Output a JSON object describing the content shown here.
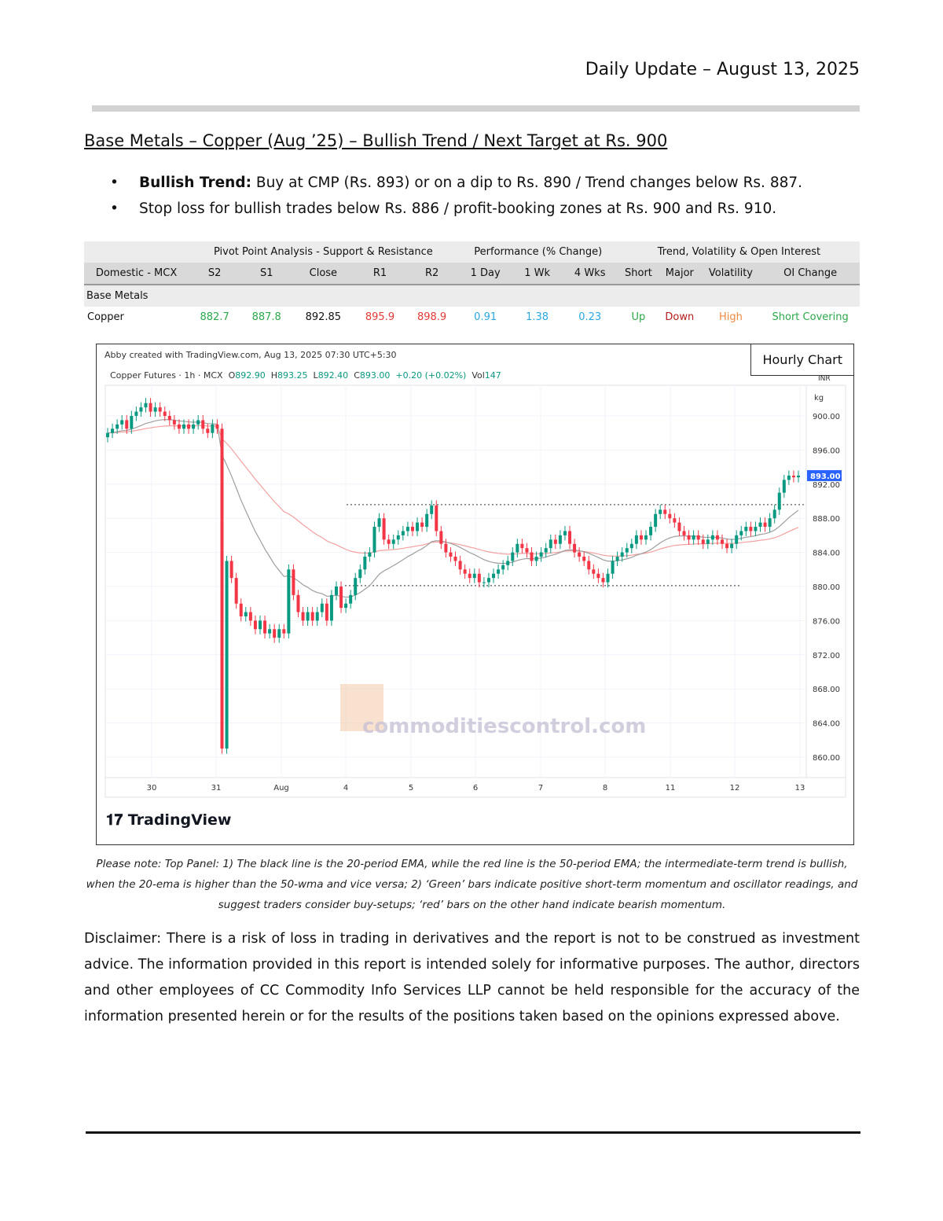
{
  "header": {
    "date_line": "Daily Update – August 13, 2025"
  },
  "title": "Base Metals – Copper (Aug   ’25) – Bullish Trend / Next Target at Rs. 900",
  "bullets": [
    {
      "bold": "Bullish Trend:",
      "text": " Buy at CMP (Rs. 893) or on a dip to Rs. 890 / Trend changes below Rs. 887."
    },
    {
      "bold": "",
      "text": "Stop loss for bullish trades below Rs. 886 / profit-booking zones at Rs. 900 and Rs. 910."
    }
  ],
  "table": {
    "group_headers": [
      "Pivot Point Analysis - Support & Resistance",
      "Performance (% Change)",
      "Trend, Volatility & Open Interest"
    ],
    "columns": [
      "Domestic - MCX",
      "S2",
      "S1",
      "Close",
      "R1",
      "R2",
      "1 Day",
      "1 Wk",
      "4 Wks",
      "Short",
      "Major",
      "Volatility",
      "OI Change"
    ],
    "section": "Base Metals",
    "row": [
      "Copper",
      "882.7",
      "887.8",
      "892.85",
      "895.9",
      "898.9",
      "0.91",
      "1.38",
      "0.23",
      "Up",
      "Down",
      "High",
      "Short Covering"
    ],
    "row_colors": [
      "#111111",
      "#2aa84a",
      "#2aa84a",
      "#111111",
      "#e53935",
      "#e53935",
      "#29a8e0",
      "#29a8e0",
      "#29a8e0",
      "#2aa84a",
      "#b71c1c",
      "#f0883e",
      "#2aa84a"
    ]
  },
  "chart": {
    "credit": "Abby created with TradingView.com, Aug 13, 2025 07:30 UTC+5:30",
    "symbol": "Copper Futures · 1h · MCX",
    "ohlc": {
      "o": "892.90",
      "h": "893.25",
      "l": "892.40",
      "c": "893.00",
      "chg": "+0.20 (+0.02%)",
      "vol": "147"
    },
    "labels": {
      "o": "O",
      "h": "H",
      "l": "L",
      "c": "C",
      "vol": "Vol"
    },
    "box_label": "Hourly Chart",
    "currency": "INR",
    "unit": "kg",
    "last_price": "893.00",
    "watermark": "commoditiescontrol.com",
    "logo": "TradingView",
    "colors": {
      "up": "#089981",
      "down": "#f23645",
      "ema20": "#9e9e9e",
      "ema50": "#f4a0a0",
      "last": "#2962ff"
    }
  },
  "chart_data": {
    "type": "candlestick",
    "y_ticks": [
      "900.00",
      "896.00",
      "892.00",
      "888.00",
      "884.00",
      "880.00",
      "876.00",
      "872.00",
      "868.00",
      "864.00",
      "860.00"
    ],
    "ylim": [
      857.5,
      903
    ],
    "x_ticks": [
      "30",
      "31",
      "Aug",
      "4",
      "5",
      "6",
      "7",
      "8",
      "11",
      "12",
      "13"
    ],
    "closes": [
      898,
      898.5,
      899,
      899.5,
      898.5,
      900,
      900.5,
      901,
      901.5,
      900.5,
      901,
      900.5,
      900,
      899.5,
      899,
      898.5,
      899,
      898.5,
      899,
      899.5,
      898.5,
      898,
      899,
      898.5,
      861,
      883,
      881,
      878,
      876.5,
      877,
      876,
      875,
      876,
      874.5,
      875,
      874,
      875,
      874.5,
      882,
      879,
      877,
      876,
      877,
      876,
      877,
      878,
      876,
      879,
      880,
      877.5,
      878,
      879,
      881,
      882,
      883.5,
      884,
      887,
      888,
      885.5,
      885,
      885.5,
      886,
      886.5,
      887,
      886.5,
      887.5,
      887,
      888.5,
      889.5,
      886.5,
      885,
      884,
      883.5,
      883,
      882,
      881.5,
      881,
      881.5,
      880.5,
      880.5,
      881,
      881.5,
      882,
      882.5,
      883,
      884,
      885,
      884.5,
      884,
      883,
      883.5,
      884,
      884.5,
      885.5,
      885,
      886,
      886.5,
      885,
      884,
      883.5,
      883,
      882,
      881.5,
      881,
      880.5,
      881.5,
      883,
      883.5,
      884,
      884.5,
      885,
      886,
      885.5,
      886,
      887,
      888.5,
      889,
      888.5,
      888,
      887.5,
      886.5,
      886,
      885.5,
      886,
      885.5,
      885,
      885.5,
      886,
      885.5,
      885,
      884.5,
      885,
      886,
      886.5,
      887,
      886.5,
      887,
      887.5,
      887,
      888,
      889,
      891,
      892.5,
      893,
      892.8,
      893
    ],
    "lines": [
      "20-period EMA",
      "50-period EMA"
    ],
    "levels": [
      889.6,
      880.1
    ]
  },
  "note": "Please note: Top Panel: 1) The black line is the 20-period EMA, while the red line is the 50-period EMA; the intermediate-term trend is bullish, when the 20-ema is higher than the 50-wma and vice versa; 2)  ‘Green’  bars indicate positive short-term momentum and oscillator readings, and suggest traders consider buy-setups;  ‘red’  bars on the other hand indicate bearish momentum.",
  "disclaimer": "Disclaimer: There is a risk of loss in trading in derivatives and the report is not to be construed as investment advice. The information provided in this report is intended solely for informative purposes. The author, directors and other employees of CC Commodity Info Services LLP cannot be held responsible for the accuracy of the information presented herein or for the results of the positions taken based on the opinions expressed above."
}
